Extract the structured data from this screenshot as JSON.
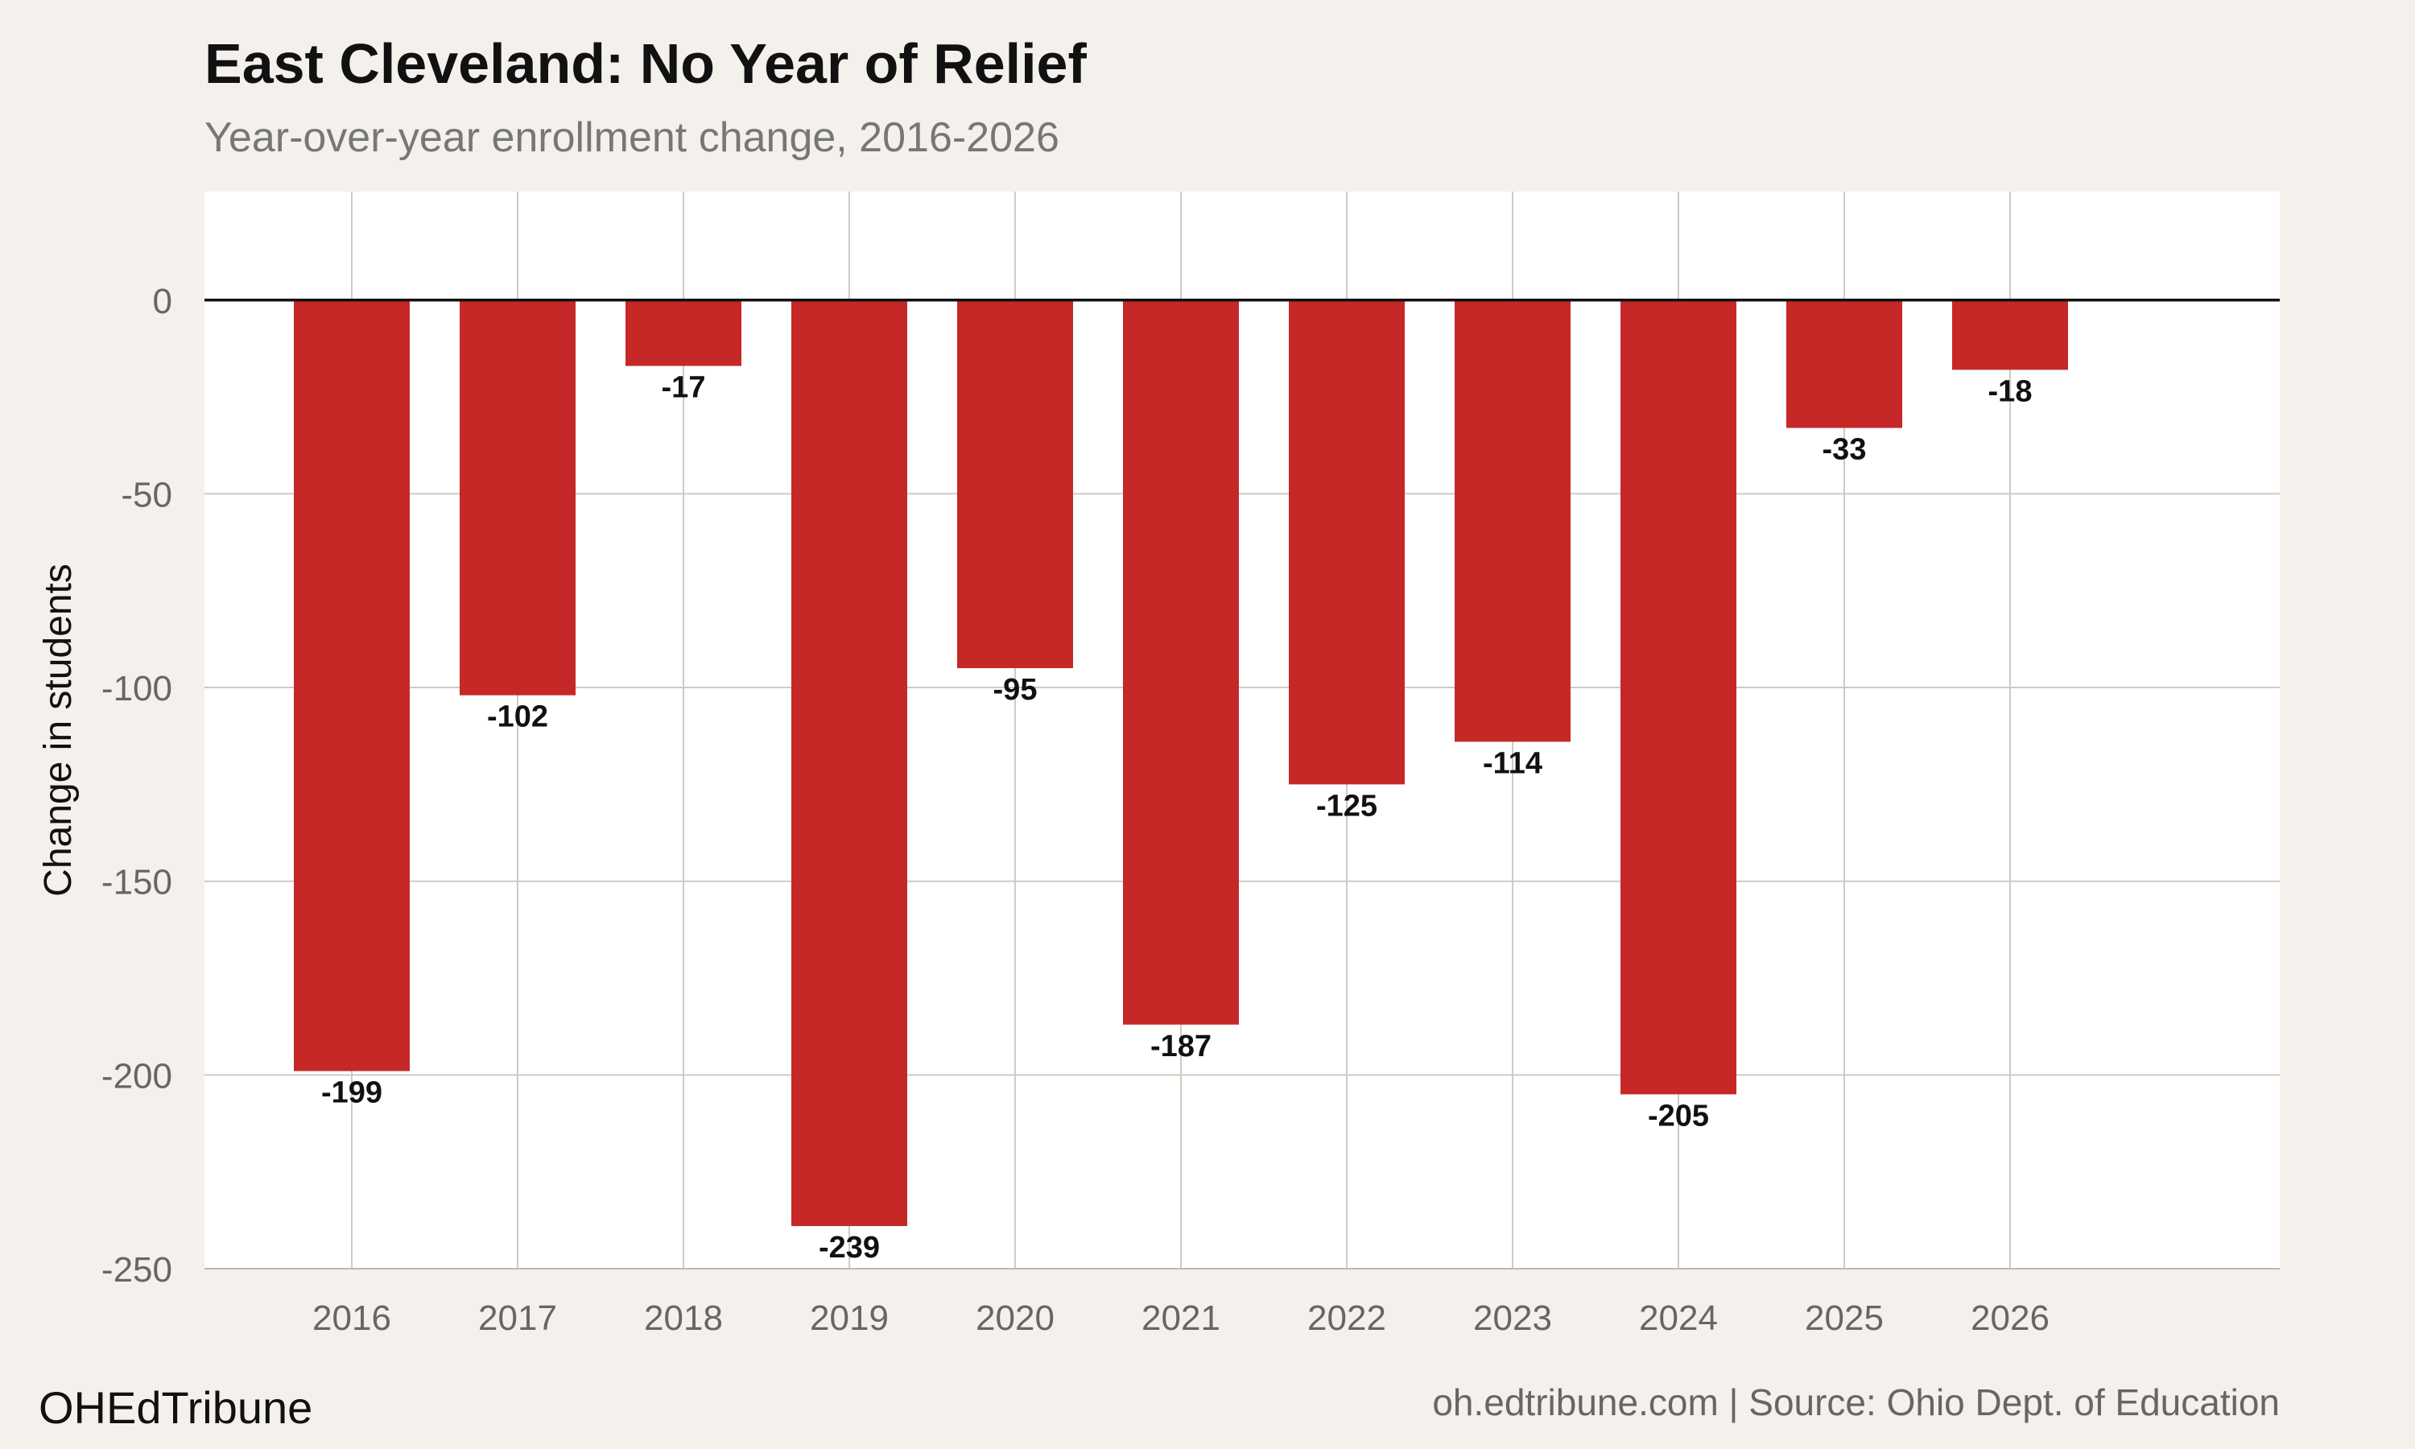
{
  "chart_data": {
    "type": "bar",
    "title": "East Cleveland: No Year of Relief",
    "subtitle": "Year-over-year enrollment change, 2016-2026",
    "xlabel": "",
    "ylabel": "Change in students",
    "categories": [
      "2016",
      "2017",
      "2018",
      "2019",
      "2020",
      "2021",
      "2022",
      "2023",
      "2024",
      "2025",
      "2026"
    ],
    "values": [
      -199,
      -102,
      -17,
      -239,
      -95,
      -187,
      -125,
      -114,
      -205,
      -33,
      -18
    ],
    "data_labels": [
      "-199",
      "-102",
      "-17",
      "-239",
      "-95",
      "-187",
      "-125",
      "-114",
      "-205",
      "-33",
      "-18"
    ],
    "ylim": [
      -250,
      28
    ],
    "yticks": [
      0,
      -50,
      -100,
      -150,
      -200,
      -250
    ],
    "ytick_labels": [
      "0",
      "-50",
      "-100",
      "-150",
      "-200",
      "-250"
    ],
    "grid": true,
    "bar_color": "#c62828",
    "zero_line_color": "#111111"
  },
  "footer": {
    "brand": "OHEdTribune",
    "source": "oh.edtribune.com | Source: Ohio Dept. of Education"
  },
  "colors": {
    "background": "#f4f1ec",
    "panel": "#ffffff",
    "grid": "#cfcbc3"
  }
}
